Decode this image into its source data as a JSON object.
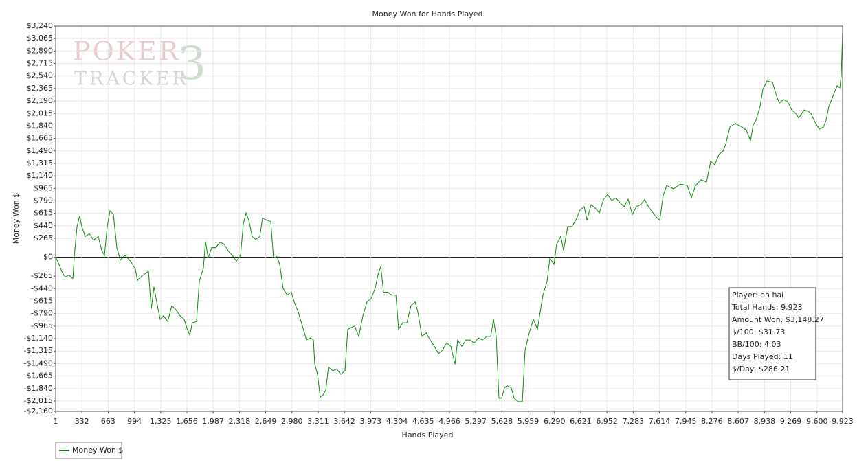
{
  "chart_data": {
    "type": "line",
    "title": "Money Won for Hands Played",
    "x_label": "Hands Played",
    "y_label": "Money Won $",
    "logo": {
      "top": "POKER",
      "bottom": "TRACKER",
      "version": "3"
    },
    "x": [
      1,
      27,
      79,
      122,
      166,
      218,
      235,
      270,
      304,
      330,
      374,
      426,
      478,
      538,
      582,
      616,
      651,
      686,
      729,
      772,
      816,
      876,
      946,
      1006,
      1032,
      1084,
      1136,
      1171,
      1206,
      1240,
      1275,
      1318,
      1362,
      1414,
      1465,
      1509,
      1570,
      1621,
      1656,
      1691,
      1725,
      1777,
      1812,
      1864,
      1890,
      1925,
      1968,
      2020,
      2072,
      2124,
      2176,
      2228,
      2280,
      2332,
      2367,
      2401,
      2436,
      2479,
      2523,
      2575,
      2609,
      2661,
      2713,
      2748,
      2791,
      2826,
      2869,
      2921,
      2973,
      3008,
      3060,
      3112,
      3164,
      3216,
      3251,
      3268,
      3303,
      3337,
      3372,
      3407,
      3441,
      3493,
      3545,
      3597,
      3649,
      3684,
      3719,
      3771,
      3823,
      3875,
      3927,
      3978,
      4030,
      4065,
      4100,
      4135,
      4187,
      4238,
      4291,
      4325,
      4377,
      4429,
      4481,
      4533,
      4568,
      4620,
      4672,
      4724,
      4776,
      4828,
      4880,
      4932,
      4984,
      5036,
      5070,
      5122,
      5174,
      5226,
      5278,
      5330,
      5382,
      5434,
      5487,
      5521,
      5556,
      5590,
      5625,
      5660,
      5694,
      5746,
      5781,
      5833,
      5885,
      5920,
      5972,
      6024,
      6076,
      6110,
      6145,
      6197,
      6232,
      6284,
      6318,
      6370,
      6405,
      6457,
      6509,
      6561,
      6613,
      6665,
      6700,
      6752,
      6804,
      6856,
      6908,
      6960,
      7012,
      7064,
      7116,
      7168,
      7220,
      7272,
      7324,
      7376,
      7428,
      7480,
      7575,
      7618,
      7661,
      7705,
      7792,
      7878,
      7965,
      8017,
      8069,
      8138,
      8207,
      8260,
      8312,
      8364,
      8416,
      8450,
      8502,
      8571,
      8658,
      8710,
      8762,
      8796,
      8831,
      8883,
      8918,
      8970,
      9039,
      9091,
      9126,
      9178,
      9230,
      9282,
      9334,
      9369,
      9438,
      9490,
      9525,
      9577,
      9629,
      9681,
      9715,
      9750,
      9802,
      9854,
      9888,
      9906,
      9923
    ],
    "series": [
      {
        "name": "Money Won $",
        "color": "#0a8a0a",
        "values": [
          0,
          -58,
          -200,
          -280,
          -250,
          -300,
          0,
          430,
          580,
          430,
          290,
          330,
          240,
          290,
          95,
          25,
          430,
          650,
          600,
          135,
          -40,
          25,
          -55,
          -170,
          -325,
          -265,
          -225,
          -195,
          -725,
          -415,
          -625,
          -870,
          -820,
          -900,
          -680,
          -725,
          -820,
          -870,
          -995,
          -1090,
          -920,
          -900,
          -340,
          -150,
          220,
          -10,
          135,
          135,
          210,
          185,
          90,
          25,
          -55,
          25,
          470,
          620,
          520,
          290,
          250,
          290,
          550,
          520,
          500,
          -10,
          10,
          -100,
          -440,
          -530,
          -490,
          -625,
          -770,
          -965,
          -1160,
          -1130,
          -1160,
          -1500,
          -1640,
          -1960,
          -1930,
          -1860,
          -1540,
          -1590,
          -1570,
          -1640,
          -1590,
          -1010,
          -990,
          -965,
          -1110,
          -820,
          -625,
          -580,
          -435,
          -245,
          -130,
          -490,
          -490,
          -530,
          -530,
          -1010,
          -920,
          -920,
          -680,
          -625,
          -770,
          -1110,
          -1060,
          -1160,
          -1250,
          -1350,
          -1300,
          -1200,
          -1250,
          -1500,
          -1160,
          -1250,
          -1160,
          -1160,
          -1200,
          -1130,
          -1160,
          -1110,
          -1110,
          -870,
          -1110,
          -1975,
          -1975,
          -1830,
          -1800,
          -1830,
          -1975,
          -2025,
          -2025,
          -1300,
          -1060,
          -870,
          -1010,
          -770,
          -530,
          -340,
          -10,
          -100,
          185,
          290,
          95,
          430,
          430,
          520,
          665,
          710,
          520,
          735,
          690,
          620,
          810,
          880,
          795,
          830,
          765,
          710,
          810,
          600,
          710,
          735,
          810,
          700,
          560,
          520,
          865,
          1005,
          960,
          1025,
          1005,
          835,
          1005,
          1085,
          1055,
          1345,
          1295,
          1440,
          1490,
          1585,
          1825,
          1875,
          1825,
          1780,
          1635,
          1855,
          1920,
          2115,
          2355,
          2470,
          2450,
          2260,
          2160,
          2210,
          2180,
          2065,
          2015,
          1950,
          2065,
          2045,
          2015,
          1890,
          1795,
          1825,
          1920,
          2115,
          2260,
          2405,
          2375,
          2547,
          3148
        ]
      }
    ],
    "xlim": [
      1,
      9923
    ],
    "xticks": [
      1,
      332,
      663,
      994,
      {
        "value": 1325,
        "label": "1,325"
      },
      {
        "value": 1656,
        "label": "1,656"
      },
      {
        "value": 1987,
        "label": "1,987"
      },
      {
        "value": 2318,
        "label": "2,318"
      },
      {
        "value": 2649,
        "label": "2,649"
      },
      {
        "value": 2980,
        "label": "2,980"
      },
      {
        "value": 3311,
        "label": "3,311"
      },
      {
        "value": 3642,
        "label": "3,642"
      },
      {
        "value": 3973,
        "label": "3,973"
      },
      {
        "value": 4304,
        "label": "4,304"
      },
      {
        "value": 4635,
        "label": "4,635"
      },
      {
        "value": 4966,
        "label": "4,966"
      },
      {
        "value": 5297,
        "label": "5,297"
      },
      {
        "value": 5628,
        "label": "5,628"
      },
      {
        "value": 5959,
        "label": "5,959"
      },
      {
        "value": 6290,
        "label": "6,290"
      },
      {
        "value": 6621,
        "label": "6,621"
      },
      {
        "value": 6952,
        "label": "6,952"
      },
      {
        "value": 7283,
        "label": "7,283"
      },
      {
        "value": 7614,
        "label": "7,614"
      },
      {
        "value": 7945,
        "label": "7,945"
      },
      {
        "value": 8276,
        "label": "8,276"
      },
      {
        "value": 8607,
        "label": "8,607"
      },
      {
        "value": 8938,
        "label": "8,938"
      },
      {
        "value": 9269,
        "label": "9,269"
      },
      {
        "value": 9600,
        "label": "9,600"
      },
      {
        "value": 9923,
        "label": "9,923"
      }
    ],
    "ylim": [
      -2160,
      3240
    ],
    "yticks": [
      {
        "value": 3240,
        "label": "$3,240"
      },
      {
        "value": 3065,
        "label": "$3,065"
      },
      {
        "value": 2890,
        "label": "$2,890"
      },
      {
        "value": 2715,
        "label": "$2,715"
      },
      {
        "value": 2540,
        "label": "$2,540"
      },
      {
        "value": 2365,
        "label": "$2,365"
      },
      {
        "value": 2190,
        "label": "$2,190"
      },
      {
        "value": 2015,
        "label": "$2,015"
      },
      {
        "value": 1840,
        "label": "$1,840"
      },
      {
        "value": 1665,
        "label": "$1,665"
      },
      {
        "value": 1490,
        "label": "$1,490"
      },
      {
        "value": 1315,
        "label": "$1,315"
      },
      {
        "value": 1140,
        "label": "$1,140"
      },
      {
        "value": 965,
        "label": "$965"
      },
      {
        "value": 790,
        "label": "$790"
      },
      {
        "value": 615,
        "label": "$615"
      },
      {
        "value": 440,
        "label": "$440"
      },
      {
        "value": 265,
        "label": "$265"
      },
      {
        "value": 0,
        "label": "$0"
      },
      {
        "value": -265,
        "label": "-$265"
      },
      {
        "value": -440,
        "label": "-$440"
      },
      {
        "value": -615,
        "label": "-$615"
      },
      {
        "value": -790,
        "label": "-$790"
      },
      {
        "value": -965,
        "label": "-$965"
      },
      {
        "value": -1140,
        "label": "-$1,140"
      },
      {
        "value": -1315,
        "label": "-$1,315"
      },
      {
        "value": -1490,
        "label": "-$1,490"
      },
      {
        "value": -1665,
        "label": "-$1,665"
      },
      {
        "value": -1840,
        "label": "-$1,840"
      },
      {
        "value": -2015,
        "label": "-$2,015"
      },
      {
        "value": -2160,
        "label": "-$2,160"
      }
    ],
    "grid": true,
    "stats": [
      "Player: oh hai",
      "Total Hands: 9,923",
      "Amount Won: $3,148.27",
      "$/100: $31.73",
      "BB/100: 4.03",
      "Days Played: 11",
      "$/Day: $286.21"
    ]
  }
}
